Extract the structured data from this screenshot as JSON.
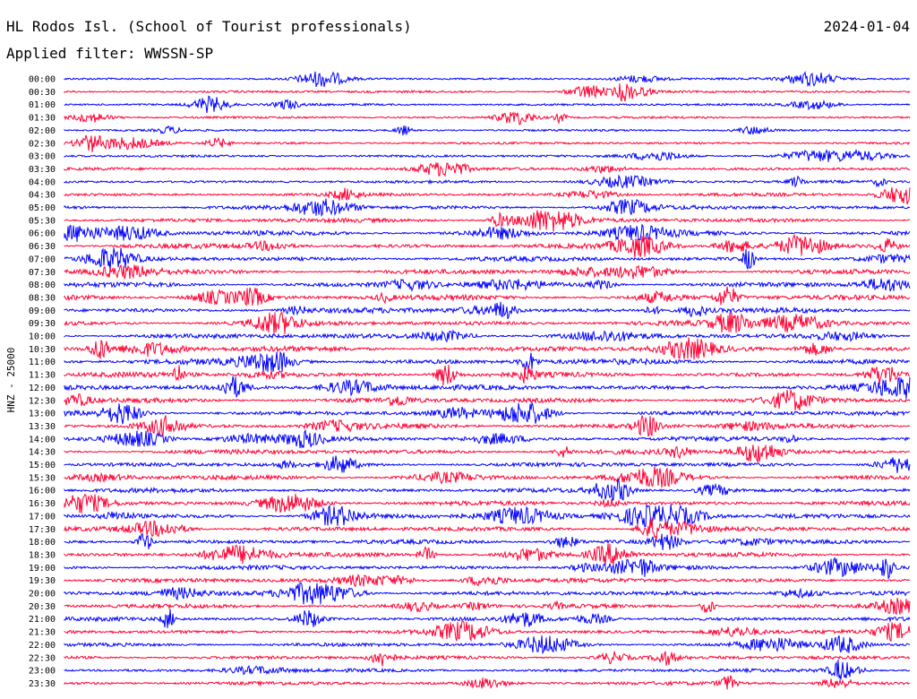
{
  "header": {
    "station": "HL Rodos Isl. (School of Tourist professionals)",
    "date": "2024-01-04",
    "filter": "Applied filter: WWSSN-SP"
  },
  "chart_data": {
    "type": "line",
    "title": "HL Rodos Isl. (School of Tourist professionals)",
    "ylabel": "HNZ - 25000",
    "trace_labels": [
      "00:00",
      "00:30",
      "01:00",
      "01:30",
      "02:00",
      "02:30",
      "03:00",
      "03:30",
      "04:00",
      "04:30",
      "05:00",
      "05:30",
      "06:00",
      "06:30",
      "07:00",
      "07:30",
      "08:00",
      "08:30",
      "09:00",
      "09:30",
      "10:00",
      "10:30",
      "11:00",
      "11:30",
      "12:00",
      "12:30",
      "13:00",
      "13:30",
      "14:00",
      "14:30",
      "15:00",
      "15:30",
      "16:00",
      "16:30",
      "17:00",
      "17:30",
      "18:00",
      "18:30",
      "19:00",
      "19:30",
      "20:00",
      "20:30",
      "21:00",
      "21:30",
      "22:00",
      "22:30",
      "23:00",
      "23:30"
    ],
    "trace_colors": [
      "#0000ff",
      "#ff0033"
    ],
    "relative_noise_level": [
      0.15,
      0.2,
      0.18,
      0.15,
      0.15,
      0.18,
      0.2,
      0.25,
      0.25,
      0.35,
      0.45,
      0.5,
      0.55,
      0.55,
      0.55,
      0.55,
      0.6,
      0.6,
      0.6,
      0.6,
      0.6,
      0.65,
      0.7,
      0.6,
      0.6,
      0.6,
      0.6,
      0.6,
      0.55,
      0.55,
      0.5,
      0.5,
      0.5,
      0.5,
      0.5,
      0.5,
      0.5,
      0.5,
      0.5,
      0.5,
      0.5,
      0.45,
      0.45,
      0.4,
      0.4,
      0.4,
      0.35,
      0.35
    ],
    "grid": false
  }
}
